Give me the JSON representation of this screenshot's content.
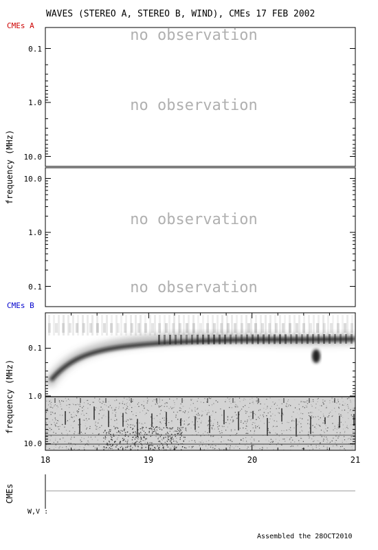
{
  "title": "WAVES (STEREO A, STEREO B, WIND), CMEs  17 FEB 2002",
  "footer": "Assembled the 28OCT2010",
  "colors": {
    "stereo_a_label": "#cc0000",
    "stereo_b_label": "#0000cc",
    "frame": "#000000",
    "no_observation": "#b0b0b0",
    "cme_baseline": "#999999"
  },
  "chart_data": [
    {
      "type": "heatmap",
      "panel": "STEREO A",
      "label": "CMEs A",
      "ylabel": "frequency (MHz)",
      "y_scale": "log",
      "y_direction": "frequency decreasing downward",
      "yticks": [
        "0.1",
        "1.0",
        "10.0"
      ],
      "annotations": [
        "no observation",
        "no observation"
      ],
      "data": "no observation"
    },
    {
      "type": "heatmap",
      "panel": "STEREO B",
      "ylabel": "frequency (MHz)",
      "y_scale": "log",
      "y_direction": "frequency increasing downward",
      "yticks": [
        "10.0",
        "1.0",
        "0.1"
      ],
      "annotations": [
        "no observation",
        "no observation"
      ],
      "data": "no observation"
    },
    {
      "type": "heatmap",
      "panel": "WIND",
      "label": "CMEs B",
      "ylabel": "frequency (MHz)",
      "y_scale": "log",
      "yticks": [
        "0.1",
        "1.0",
        "10.0"
      ],
      "xlim": [
        18,
        21
      ],
      "xticks": [
        "18",
        "19",
        "20",
        "21"
      ],
      "colormap": "white to black (intensity)",
      "features": [
        {
          "name": "type III burst drift",
          "x": [
            18.05,
            18.2,
            18.4,
            18.7,
            19.0,
            19.4,
            19.8,
            20.3,
            20.9
          ],
          "y": [
            0.55,
            0.3,
            0.2,
            0.155,
            0.135,
            0.125,
            0.12,
            0.115,
            0.11
          ]
        },
        {
          "name": "intense spot",
          "x": [
            20.62
          ],
          "y": [
            0.17
          ]
        }
      ]
    },
    {
      "type": "timeline",
      "panel": "CMEs",
      "ylabel": "CMEs",
      "row_label": "W,V :",
      "xlim": [
        18,
        21
      ],
      "events": []
    }
  ]
}
